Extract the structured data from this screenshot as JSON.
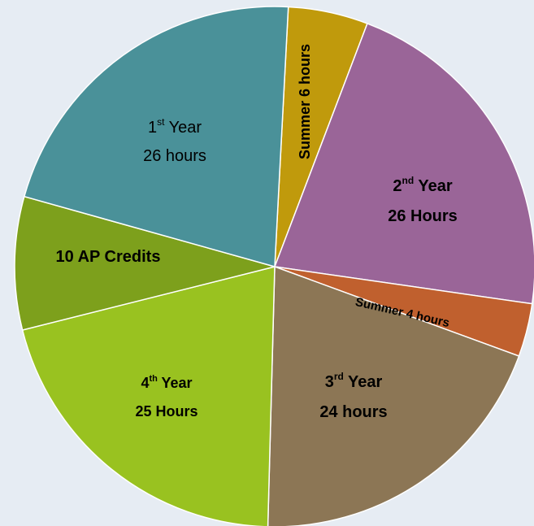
{
  "chart_data": {
    "type": "pie",
    "categories": [
      [
        [
          "Summer 6 hours"
        ]
      ],
      [
        [
          "2",
          "nd",
          " Year"
        ],
        [
          "26 Hours"
        ]
      ],
      [
        [
          "Summer 4 hours"
        ]
      ],
      [
        [
          "3",
          "rd",
          " Year"
        ],
        [
          "24 hours"
        ]
      ],
      [
        [
          "4",
          "th",
          " Year"
        ],
        [
          "25 Hours"
        ]
      ],
      [
        [
          "10 AP Credits"
        ]
      ],
      [
        [
          "1",
          "st",
          " Year"
        ],
        [
          "26 hours"
        ]
      ]
    ],
    "values": [
      6,
      26,
      4,
      24,
      25,
      10,
      26
    ],
    "colors": [
      "#c09a0c",
      "#9a6598",
      "#c0602e",
      "#8c7655",
      "#99c220",
      "#7da01c",
      "#4a9199"
    ]
  }
}
